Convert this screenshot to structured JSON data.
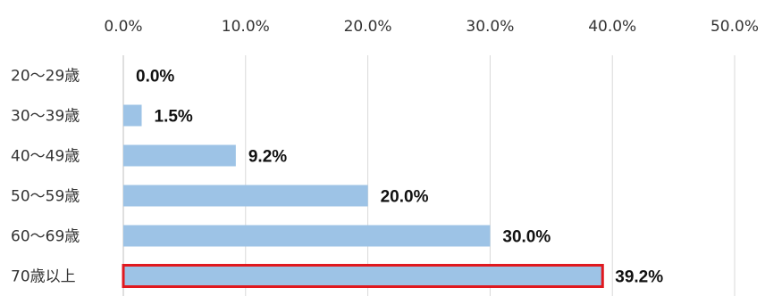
{
  "chart_data": {
    "type": "bar",
    "orientation": "horizontal",
    "categories": [
      "20〜29歳",
      "30〜39歳",
      "40〜49歳",
      "50〜59歳",
      "60〜69歳",
      "70歳以上"
    ],
    "values": [
      0.0,
      1.5,
      9.2,
      20.0,
      30.0,
      39.2
    ],
    "value_labels": [
      "0.0%",
      "1.5%",
      "9.2%",
      "20.0%",
      "30.0%",
      "39.2%"
    ],
    "xlim": [
      0,
      50
    ],
    "x_ticks": [
      0,
      10,
      20,
      30,
      40,
      50
    ],
    "x_tick_labels": [
      "0.0%",
      "10.0%",
      "20.0%",
      "30.0%",
      "40.0%",
      "50.0%"
    ],
    "x_axis_position": "top",
    "grid": "vertical",
    "title": "",
    "xlabel": "",
    "ylabel": "",
    "highlighted_category": "70歳以上",
    "colors": {
      "bar": "#9DC3E6",
      "highlight_outline": "#E0191F",
      "grid": "#D9D9D9",
      "axis": "#BFBFBF"
    }
  }
}
